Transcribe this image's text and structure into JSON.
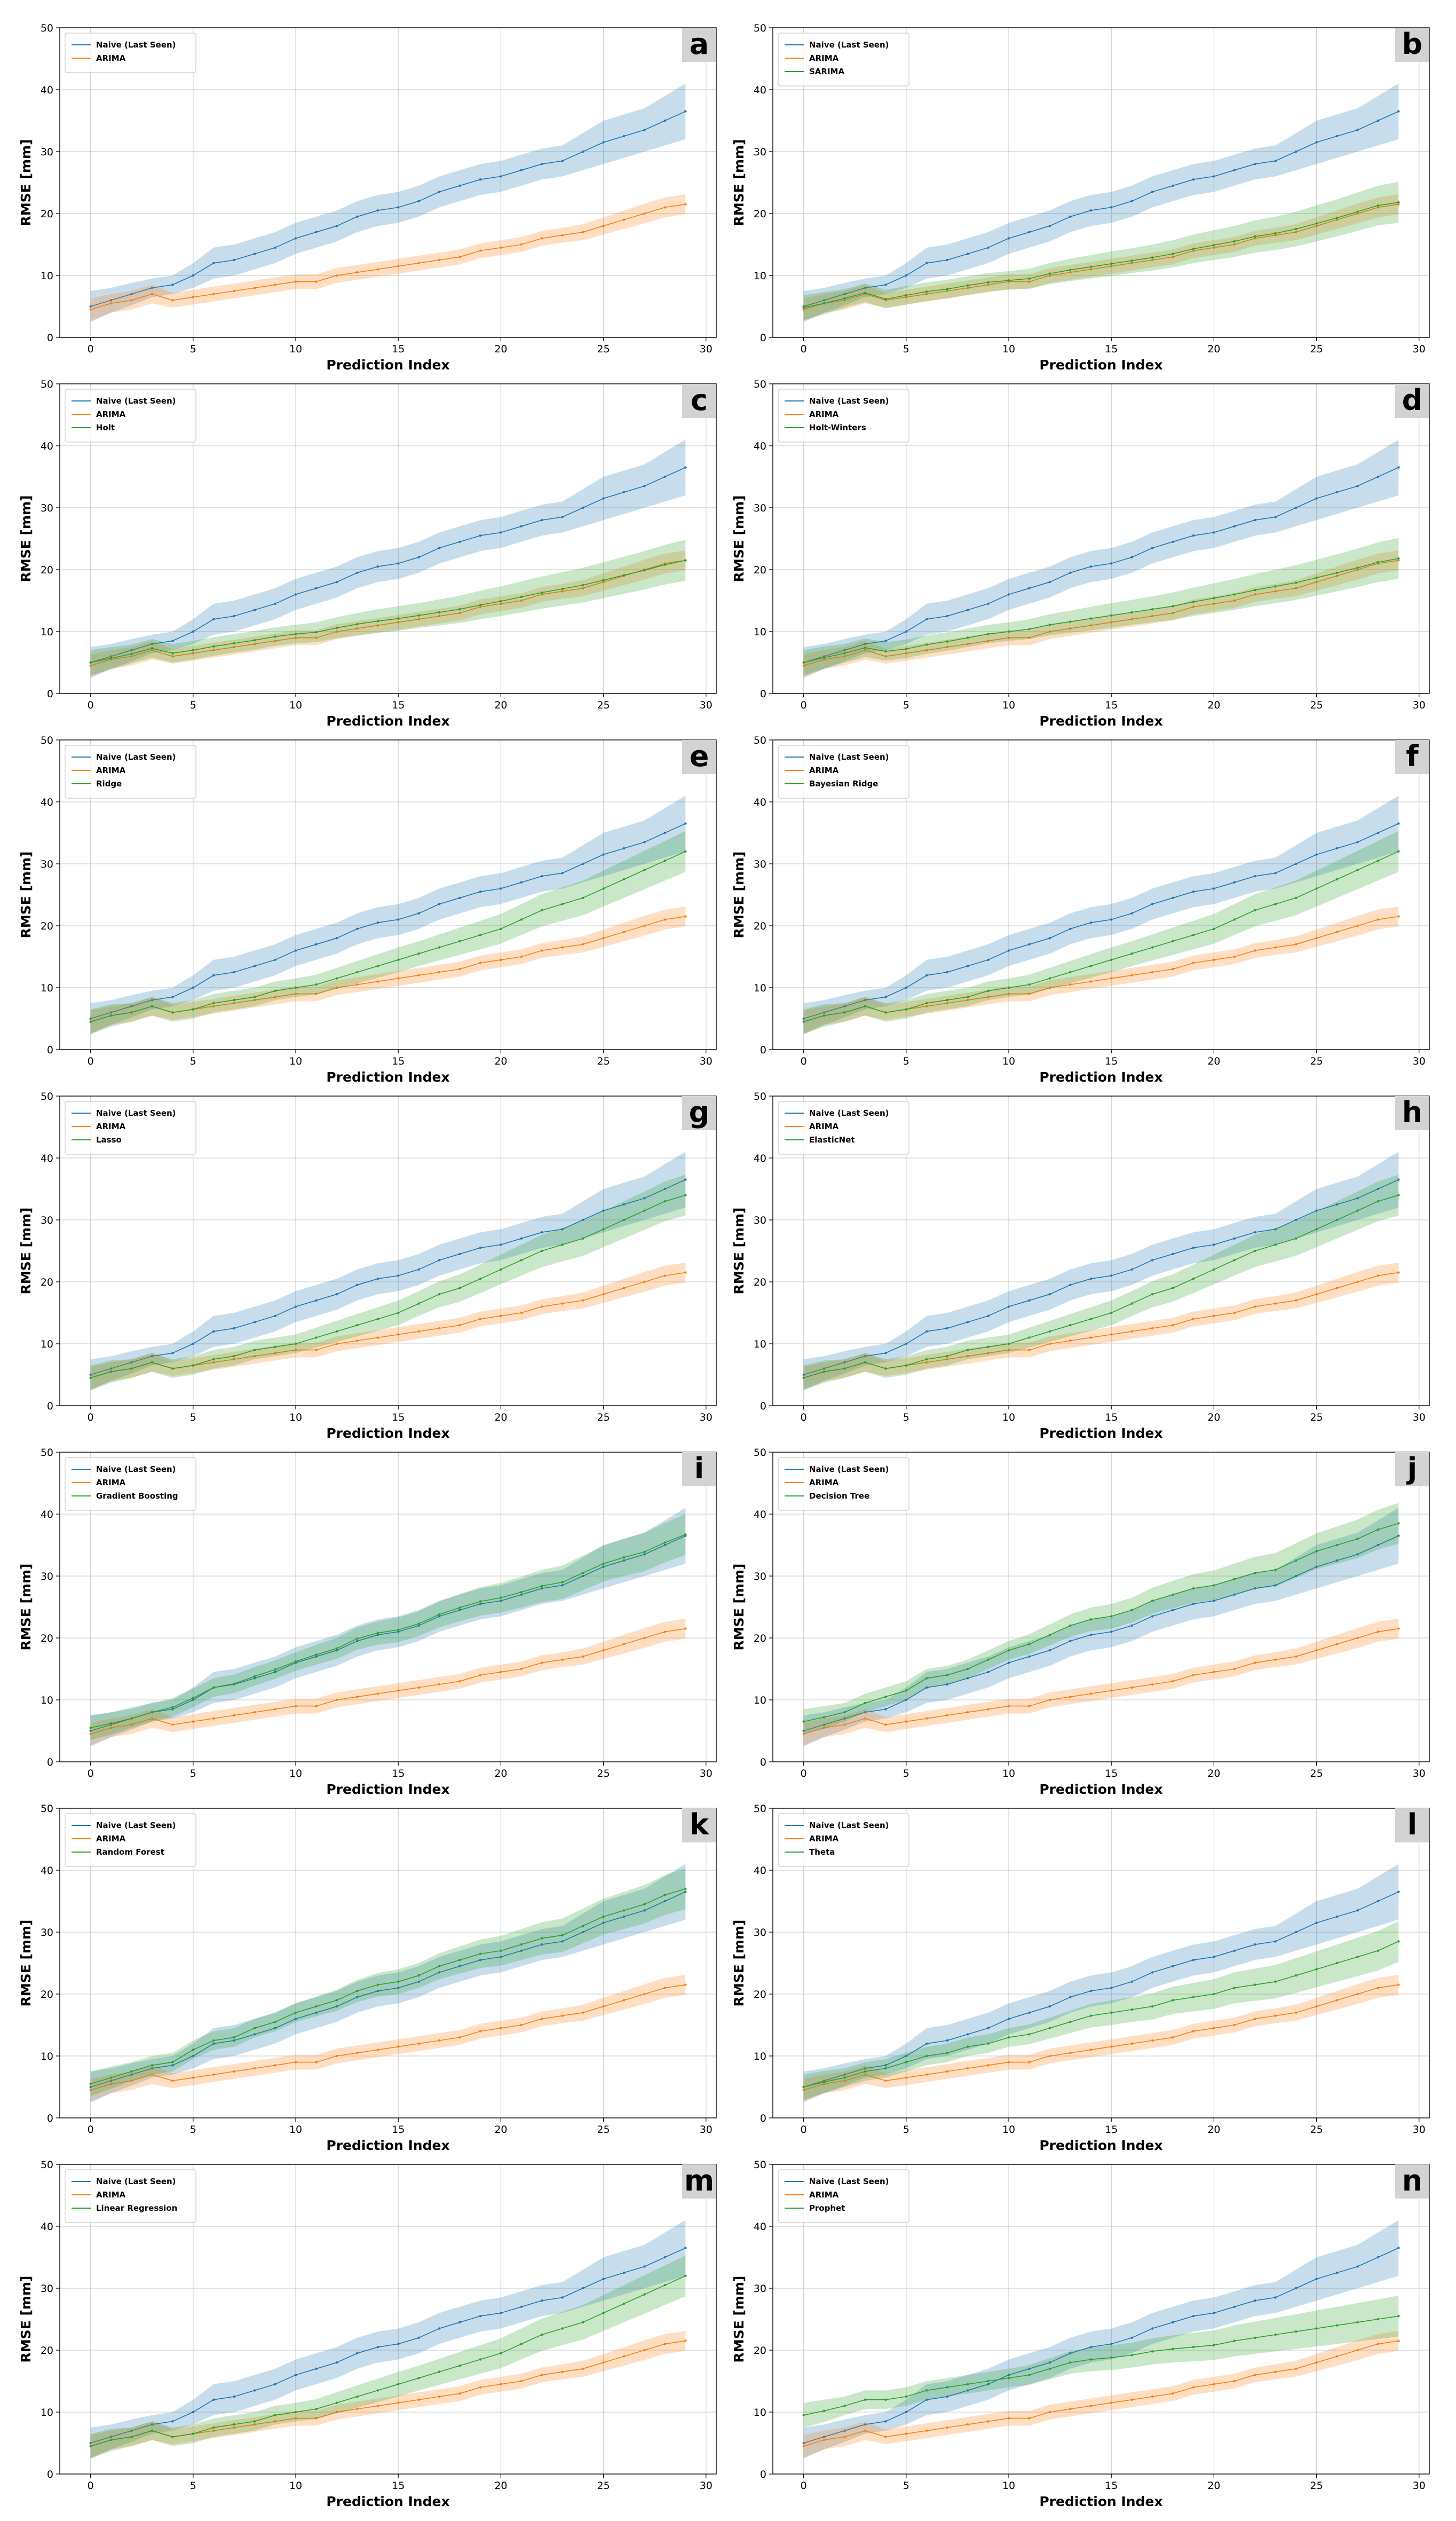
{
  "figure": {
    "x_label": "Prediction Index",
    "y_label": "RMSE [mm]",
    "x_ticks": [
      "0",
      "5",
      "10",
      "15",
      "20",
      "25",
      "30"
    ],
    "y_ticks": [
      "0",
      "10",
      "20",
      "30",
      "40",
      "50"
    ]
  },
  "colors": {
    "naive": "#1f77b4",
    "arima": "#ff7f0e",
    "model": "#2ca02c"
  },
  "chart_data": [
    {
      "type": "line",
      "panel": "a",
      "xlim": [
        -1.5,
        30.5
      ],
      "ylim": [
        0,
        50
      ],
      "xlabel": "Prediction Index",
      "ylabel": "RMSE [mm]",
      "legend": "top-left",
      "series": [
        {
          "name": "Naive (Last Seen)",
          "key": "naive"
        },
        {
          "name": "ARIMA",
          "key": "arima"
        }
      ]
    },
    {
      "type": "line",
      "panel": "b",
      "xlim": [
        -1.5,
        30.5
      ],
      "ylim": [
        0,
        50
      ],
      "xlabel": "Prediction Index",
      "ylabel": "RMSE [mm]",
      "legend": "top-left",
      "series": [
        {
          "name": "Naive (Last Seen)",
          "key": "naive"
        },
        {
          "name": "ARIMA",
          "key": "arima"
        },
        {
          "name": "SARIMA",
          "key": "sarima"
        }
      ]
    },
    {
      "type": "line",
      "panel": "c",
      "xlim": [
        -1.5,
        30.5
      ],
      "ylim": [
        0,
        50
      ],
      "xlabel": "Prediction Index",
      "ylabel": "RMSE [mm]",
      "legend": "top-left",
      "series": [
        {
          "name": "Naive (Last Seen)",
          "key": "naive"
        },
        {
          "name": "ARIMA",
          "key": "arima"
        },
        {
          "name": "Holt",
          "key": "holt"
        }
      ]
    },
    {
      "type": "line",
      "panel": "d",
      "xlim": [
        -1.5,
        30.5
      ],
      "ylim": [
        0,
        50
      ],
      "xlabel": "Prediction Index",
      "ylabel": "RMSE [mm]",
      "legend": "top-left",
      "series": [
        {
          "name": "Naive (Last Seen)",
          "key": "naive"
        },
        {
          "name": "ARIMA",
          "key": "arima"
        },
        {
          "name": "Holt-Winters",
          "key": "holtwinters"
        }
      ]
    },
    {
      "type": "line",
      "panel": "e",
      "xlim": [
        -1.5,
        30.5
      ],
      "ylim": [
        0,
        50
      ],
      "xlabel": "Prediction Index",
      "ylabel": "RMSE [mm]",
      "legend": "top-left",
      "series": [
        {
          "name": "Naive (Last Seen)",
          "key": "naive"
        },
        {
          "name": "ARIMA",
          "key": "arima"
        },
        {
          "name": "Ridge",
          "key": "ridge"
        }
      ]
    },
    {
      "type": "line",
      "panel": "f",
      "xlim": [
        -1.5,
        30.5
      ],
      "ylim": [
        0,
        50
      ],
      "xlabel": "Prediction Index",
      "ylabel": "RMSE [mm]",
      "legend": "top-left",
      "series": [
        {
          "name": "Naive (Last Seen)",
          "key": "naive"
        },
        {
          "name": "ARIMA",
          "key": "arima"
        },
        {
          "name": "Bayesian Ridge",
          "key": "ridge"
        }
      ]
    },
    {
      "type": "line",
      "panel": "g",
      "xlim": [
        -1.5,
        30.5
      ],
      "ylim": [
        0,
        50
      ],
      "xlabel": "Prediction Index",
      "ylabel": "RMSE [mm]",
      "legend": "top-left",
      "series": [
        {
          "name": "Naive (Last Seen)",
          "key": "naive"
        },
        {
          "name": "ARIMA",
          "key": "arima"
        },
        {
          "name": "Lasso",
          "key": "lasso"
        }
      ]
    },
    {
      "type": "line",
      "panel": "h",
      "xlim": [
        -1.5,
        30.5
      ],
      "ylim": [
        0,
        50
      ],
      "xlabel": "Prediction Index",
      "ylabel": "RMSE [mm]",
      "legend": "top-left",
      "series": [
        {
          "name": "Naive (Last Seen)",
          "key": "naive"
        },
        {
          "name": "ARIMA",
          "key": "arima"
        },
        {
          "name": "ElasticNet",
          "key": "lasso"
        }
      ]
    },
    {
      "type": "line",
      "panel": "i",
      "xlim": [
        -1.5,
        30.5
      ],
      "ylim": [
        0,
        50
      ],
      "xlabel": "Prediction Index",
      "ylabel": "RMSE [mm]",
      "legend": "top-left",
      "series": [
        {
          "name": "Naive (Last Seen)",
          "key": "naive"
        },
        {
          "name": "ARIMA",
          "key": "arima"
        },
        {
          "name": "Gradient Boosting",
          "key": "gboost"
        }
      ]
    },
    {
      "type": "line",
      "panel": "j",
      "xlim": [
        -1.5,
        30.5
      ],
      "ylim": [
        0,
        50
      ],
      "xlabel": "Prediction Index",
      "ylabel": "RMSE [mm]",
      "legend": "top-left",
      "series": [
        {
          "name": "Naive (Last Seen)",
          "key": "naive"
        },
        {
          "name": "ARIMA",
          "key": "arima"
        },
        {
          "name": "Decision Tree",
          "key": "dtree"
        }
      ]
    },
    {
      "type": "line",
      "panel": "k",
      "xlim": [
        -1.5,
        30.5
      ],
      "ylim": [
        0,
        50
      ],
      "xlabel": "Prediction Index",
      "ylabel": "RMSE [mm]",
      "legend": "top-left",
      "series": [
        {
          "name": "Naive (Last Seen)",
          "key": "naive"
        },
        {
          "name": "ARIMA",
          "key": "arima"
        },
        {
          "name": "Random Forest",
          "key": "rforest"
        }
      ]
    },
    {
      "type": "line",
      "panel": "l",
      "xlim": [
        -1.5,
        30.5
      ],
      "ylim": [
        0,
        50
      ],
      "xlabel": "Prediction Index",
      "ylabel": "RMSE [mm]",
      "legend": "top-left",
      "series": [
        {
          "name": "Naive (Last Seen)",
          "key": "naive"
        },
        {
          "name": "ARIMA",
          "key": "arima"
        },
        {
          "name": "Theta",
          "key": "theta"
        }
      ]
    },
    {
      "type": "line",
      "panel": "m",
      "xlim": [
        -1.5,
        30.5
      ],
      "ylim": [
        0,
        50
      ],
      "xlabel": "Prediction Index",
      "ylabel": "RMSE [mm]",
      "legend": "top-left",
      "series": [
        {
          "name": "Naive (Last Seen)",
          "key": "naive"
        },
        {
          "name": "ARIMA",
          "key": "arima"
        },
        {
          "name": "Linear Regression",
          "key": "linreg"
        }
      ]
    },
    {
      "type": "line",
      "panel": "n",
      "xlim": [
        -1.5,
        30.5
      ],
      "ylim": [
        0,
        50
      ],
      "xlabel": "Prediction Index",
      "ylabel": "RMSE [mm]",
      "legend": "top-left",
      "series": [
        {
          "name": "Naive (Last Seen)",
          "key": "naive"
        },
        {
          "name": "ARIMA",
          "key": "arima"
        },
        {
          "name": "Prophet",
          "key": "prophet"
        }
      ]
    }
  ],
  "series_values": {
    "x": [
      0,
      1,
      2,
      3,
      4,
      5,
      6,
      7,
      8,
      9,
      10,
      11,
      12,
      13,
      14,
      15,
      16,
      17,
      18,
      19,
      20,
      21,
      22,
      23,
      24,
      25,
      26,
      27,
      28,
      29
    ],
    "naive": [
      5.0,
      6.0,
      7.0,
      8.0,
      8.5,
      10.0,
      12.0,
      12.5,
      13.5,
      14.5,
      16.0,
      17.0,
      18.0,
      19.5,
      20.5,
      21.0,
      22.0,
      23.5,
      24.5,
      25.5,
      26.0,
      27.0,
      28.0,
      28.5,
      30.0,
      31.5,
      32.5,
      33.5,
      35.0,
      36.5
    ],
    "arima": [
      4.5,
      5.5,
      6.0,
      7.0,
      6.0,
      6.5,
      7.0,
      7.5,
      8.0,
      8.5,
      9.0,
      9.0,
      10.0,
      10.5,
      11.0,
      11.5,
      12.0,
      12.5,
      13.0,
      14.0,
      14.5,
      15.0,
      16.0,
      16.5,
      17.0,
      18.0,
      19.0,
      20.0,
      21.0,
      21.5
    ],
    "sarima": [
      4.8,
      5.5,
      6.3,
      7.2,
      6.2,
      6.8,
      7.4,
      7.8,
      8.4,
      8.9,
      9.2,
      9.5,
      10.3,
      10.9,
      11.4,
      11.9,
      12.4,
      12.9,
      13.5,
      14.3,
      14.9,
      15.5,
      16.3,
      16.8,
      17.5,
      18.4,
      19.3,
      20.3,
      21.3,
      21.8
    ],
    "holt": [
      5.0,
      5.7,
      6.4,
      7.3,
      6.5,
      7.0,
      7.6,
      8.1,
      8.6,
      9.2,
      9.6,
      9.9,
      10.6,
      11.2,
      11.7,
      12.1,
      12.6,
      13.1,
      13.6,
      14.3,
      14.9,
      15.6,
      16.3,
      16.9,
      17.5,
      18.3,
      19.1,
      19.9,
      20.8,
      21.5
    ],
    "holtwinters": [
      5.0,
      5.8,
      6.5,
      7.4,
      6.8,
      7.2,
      7.9,
      8.4,
      9.0,
      9.6,
      10.0,
      10.4,
      11.1,
      11.6,
      12.1,
      12.6,
      13.1,
      13.6,
      14.1,
      14.8,
      15.4,
      16.0,
      16.7,
      17.3,
      17.9,
      18.7,
      19.5,
      20.3,
      21.2,
      21.8
    ],
    "ridge": [
      4.5,
      5.5,
      6.0,
      7.0,
      6.0,
      6.5,
      7.5,
      8.0,
      8.5,
      9.5,
      10.0,
      10.5,
      11.5,
      12.5,
      13.5,
      14.5,
      15.5,
      16.5,
      17.5,
      18.5,
      19.5,
      21.0,
      22.5,
      23.5,
      24.5,
      26.0,
      27.5,
      29.0,
      30.5,
      32.0
    ],
    "lasso": [
      4.5,
      5.5,
      6.0,
      7.0,
      6.0,
      6.5,
      7.5,
      8.0,
      9.0,
      9.5,
      10.0,
      11.0,
      12.0,
      13.0,
      14.0,
      15.0,
      16.5,
      18.0,
      19.0,
      20.5,
      22.0,
      23.5,
      25.0,
      26.0,
      27.0,
      28.5,
      30.0,
      31.5,
      33.0,
      34.0
    ],
    "gboost": [
      5.5,
      6.2,
      7.0,
      8.0,
      8.8,
      10.3,
      12.0,
      12.6,
      13.8,
      14.9,
      16.2,
      17.3,
      18.3,
      19.9,
      20.8,
      21.3,
      22.3,
      23.8,
      24.9,
      25.9,
      26.5,
      27.4,
      28.4,
      29.0,
      30.5,
      32.0,
      33.0,
      33.9,
      35.4,
      36.7
    ],
    "dtree": [
      6.5,
      7.2,
      8.0,
      9.5,
      10.5,
      11.5,
      13.5,
      14.0,
      15.0,
      16.5,
      18.0,
      19.0,
      20.5,
      22.0,
      23.0,
      23.5,
      24.5,
      26.0,
      27.0,
      28.0,
      28.5,
      29.5,
      30.5,
      31.0,
      32.5,
      34.0,
      35.0,
      36.0,
      37.5,
      38.5
    ],
    "rforest": [
      5.5,
      6.5,
      7.5,
      8.5,
      9.0,
      11.0,
      12.5,
      13.0,
      14.5,
      15.5,
      17.0,
      18.0,
      19.0,
      20.5,
      21.5,
      22.0,
      23.0,
      24.5,
      25.5,
      26.5,
      27.0,
      28.0,
      29.0,
      29.5,
      31.0,
      32.5,
      33.5,
      34.5,
      36.0,
      37.0
    ],
    "theta": [
      5.0,
      5.8,
      6.5,
      7.5,
      8.0,
      9.0,
      10.0,
      10.5,
      11.5,
      12.0,
      13.0,
      13.5,
      14.5,
      15.5,
      16.5,
      17.0,
      17.5,
      18.0,
      19.0,
      19.5,
      20.0,
      21.0,
      21.5,
      22.0,
      23.0,
      24.0,
      25.0,
      26.0,
      27.0,
      28.5
    ],
    "linreg": [
      4.5,
      5.5,
      6.0,
      7.0,
      6.0,
      6.5,
      7.5,
      8.0,
      8.5,
      9.5,
      10.0,
      10.5,
      11.5,
      12.5,
      13.5,
      14.5,
      15.5,
      16.5,
      17.5,
      18.5,
      19.5,
      21.0,
      22.5,
      23.5,
      24.5,
      26.0,
      27.5,
      29.0,
      30.5,
      32.0
    ],
    "prophet": [
      9.5,
      10.2,
      11.0,
      12.0,
      12.0,
      12.5,
      13.5,
      14.0,
      14.5,
      15.0,
      15.5,
      16.0,
      17.0,
      18.0,
      18.5,
      18.8,
      19.2,
      19.8,
      20.2,
      20.5,
      20.8,
      21.5,
      22.0,
      22.5,
      23.0,
      23.5,
      24.0,
      24.5,
      25.0,
      25.5
    ]
  },
  "band_widths": {
    "naive": [
      2.5,
      2.0,
      1.8,
      1.5,
      1.5,
      2.0,
      2.5,
      2.5,
      2.5,
      2.5,
      2.5,
      2.5,
      2.5,
      2.5,
      2.5,
      2.5,
      2.5,
      2.5,
      2.5,
      2.5,
      2.5,
      2.5,
      2.5,
      2.5,
      3.0,
      3.5,
      3.5,
      3.5,
      4.0,
      4.5
    ],
    "arima": [
      1.8,
      1.5,
      1.5,
      1.5,
      1.2,
      1.2,
      1.2,
      1.2,
      1.2,
      1.2,
      1.2,
      1.2,
      1.2,
      1.2,
      1.2,
      1.2,
      1.2,
      1.2,
      1.2,
      1.2,
      1.2,
      1.2,
      1.2,
      1.2,
      1.3,
      1.4,
      1.5,
      1.6,
      1.6,
      1.6
    ],
    "model": [
      2.0,
      1.8,
      1.5,
      1.5,
      1.5,
      1.5,
      1.5,
      1.5,
      1.5,
      1.5,
      1.5,
      1.6,
      1.7,
      1.8,
      1.9,
      2.0,
      2.0,
      2.1,
      2.2,
      2.3,
      2.4,
      2.5,
      2.6,
      2.7,
      2.8,
      2.9,
      3.0,
      3.1,
      3.2,
      3.3
    ]
  }
}
